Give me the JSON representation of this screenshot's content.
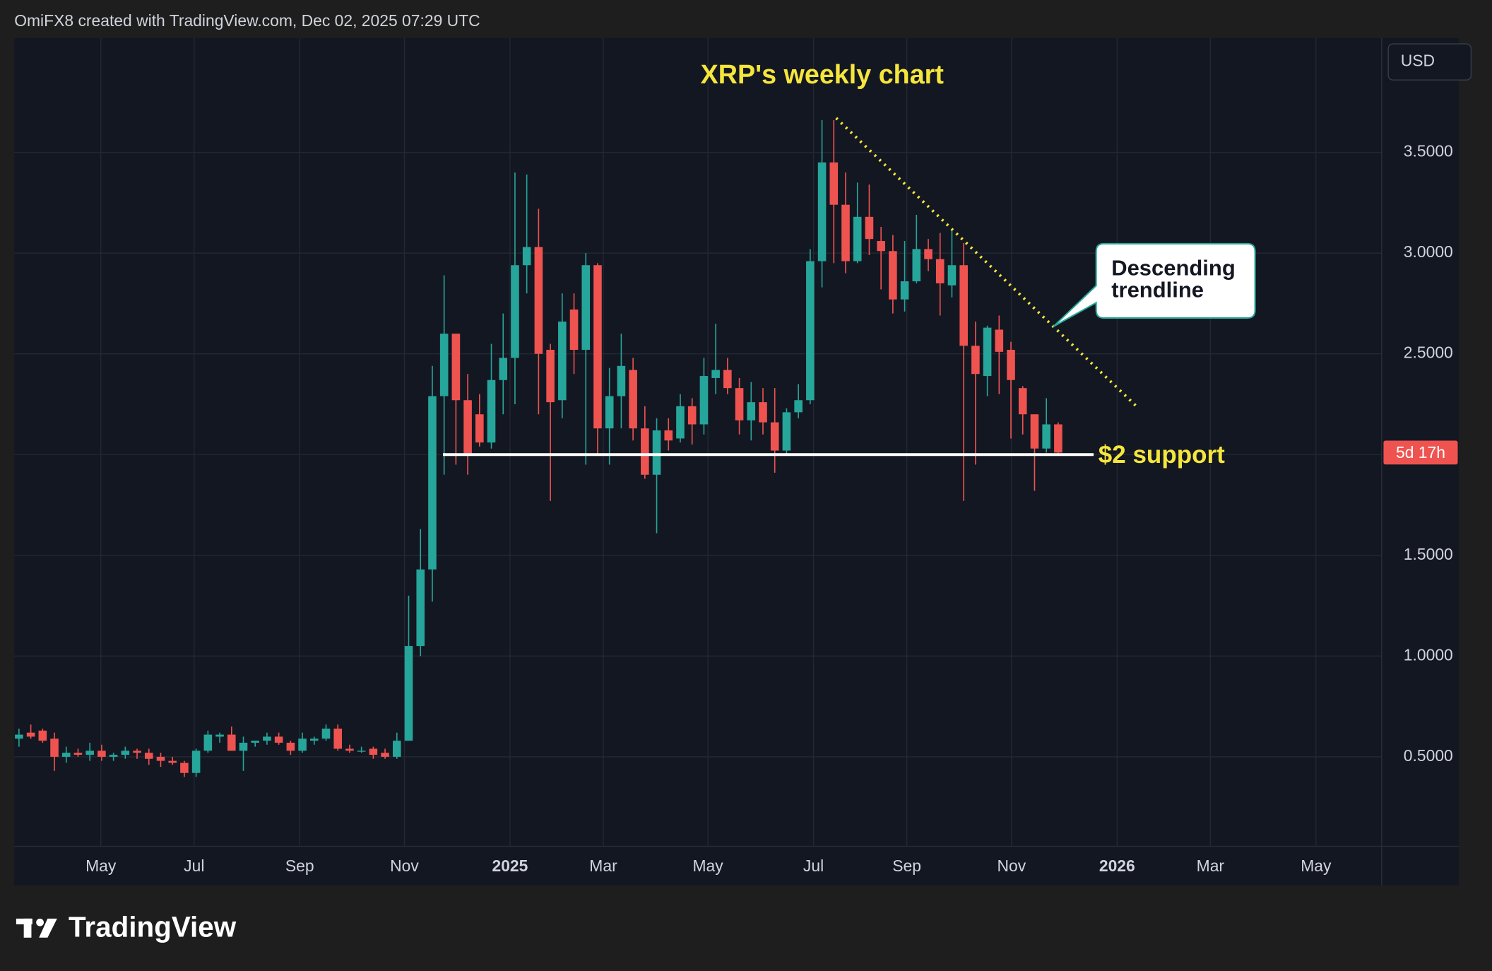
{
  "header": "OmiFX8 created with TradingView.com, Dec 02, 2025 07:29 UTC",
  "currency": "USD",
  "footer": "TradingView",
  "chart_data": {
    "type": "candlestick",
    "title": "XRP's weekly chart",
    "up_color": "#26a69a",
    "down_color": "#ef5350",
    "grid": true,
    "open": [
      0.59,
      0.62,
      0.63,
      0.59,
      0.5,
      0.52,
      0.51,
      0.53,
      0.5,
      0.51,
      0.53,
      0.52,
      0.5,
      0.48,
      0.47,
      0.42,
      0.53,
      0.6,
      0.61,
      0.53,
      0.57,
      0.58,
      0.6,
      0.57,
      0.53,
      0.58,
      0.59,
      0.64,
      0.54,
      0.53,
      0.54,
      0.52,
      0.5,
      0.58,
      1.05,
      1.43,
      2.29,
      2.6,
      2.27,
      2.2,
      2.06,
      2.37,
      2.48,
      2.94,
      3.03,
      2.52,
      2.27,
      2.72,
      2.52,
      2.94,
      2.13,
      2.29,
      2.42,
      2.13,
      1.9,
      2.12,
      2.08,
      2.24,
      2.15,
      2.38,
      2.42,
      2.33,
      2.17,
      2.26,
      2.16,
      2.02,
      2.21,
      2.27,
      2.96,
      3.45,
      3.24,
      2.96,
      3.18,
      3.06,
      3.01,
      2.77,
      2.86,
      3.02,
      2.97,
      2.84,
      2.94,
      2.54,
      2.39,
      2.62,
      2.52,
      2.33,
      2.2,
      2.03,
      2.15
    ],
    "high": [
      0.64,
      0.66,
      0.64,
      0.62,
      0.55,
      0.54,
      0.57,
      0.56,
      0.52,
      0.55,
      0.54,
      0.54,
      0.52,
      0.5,
      0.48,
      0.54,
      0.63,
      0.62,
      0.65,
      0.6,
      0.58,
      0.62,
      0.62,
      0.58,
      0.62,
      0.6,
      0.66,
      0.66,
      0.56,
      0.55,
      0.55,
      0.54,
      0.62,
      1.3,
      1.63,
      2.44,
      2.89,
      2.6,
      2.4,
      2.3,
      2.55,
      2.7,
      3.4,
      3.39,
      3.22,
      2.55,
      2.8,
      2.8,
      3.0,
      2.95,
      2.43,
      2.6,
      2.48,
      2.24,
      2.18,
      2.18,
      2.3,
      2.28,
      2.48,
      2.65,
      2.48,
      2.38,
      2.36,
      2.33,
      2.33,
      2.23,
      2.35,
      3.02,
      3.66,
      3.66,
      3.4,
      3.35,
      3.34,
      3.13,
      3.09,
      3.06,
      3.19,
      3.07,
      3.1,
      3.11,
      3.05,
      2.66,
      2.64,
      2.69,
      2.56,
      2.34,
      2.2,
      2.28,
      2.16
    ],
    "low": [
      0.55,
      0.59,
      0.57,
      0.43,
      0.47,
      0.5,
      0.48,
      0.48,
      0.48,
      0.49,
      0.49,
      0.46,
      0.45,
      0.46,
      0.4,
      0.4,
      0.52,
      0.57,
      0.53,
      0.43,
      0.55,
      0.56,
      0.56,
      0.51,
      0.52,
      0.56,
      0.58,
      0.53,
      0.52,
      0.52,
      0.49,
      0.49,
      0.49,
      0.58,
      1.0,
      1.27,
      1.9,
      1.95,
      1.9,
      2.04,
      2.03,
      2.2,
      2.25,
      2.8,
      2.2,
      1.77,
      2.18,
      2.4,
      1.95,
      2.0,
      1.95,
      2.13,
      2.07,
      1.88,
      1.61,
      2.02,
      2.06,
      2.05,
      2.1,
      2.3,
      2.3,
      2.1,
      2.07,
      2.1,
      1.91,
      2.0,
      2.18,
      2.25,
      2.83,
      2.95,
      2.9,
      2.95,
      2.99,
      2.82,
      2.7,
      2.71,
      2.85,
      2.91,
      2.69,
      2.78,
      1.77,
      1.95,
      2.29,
      2.3,
      2.08,
      2.1,
      1.82,
      2.01,
      2.0
    ],
    "close": [
      0.61,
      0.6,
      0.58,
      0.5,
      0.52,
      0.51,
      0.53,
      0.5,
      0.51,
      0.53,
      0.52,
      0.49,
      0.48,
      0.47,
      0.42,
      0.53,
      0.61,
      0.61,
      0.53,
      0.57,
      0.58,
      0.6,
      0.57,
      0.53,
      0.59,
      0.59,
      0.64,
      0.54,
      0.53,
      0.53,
      0.51,
      0.5,
      0.58,
      1.05,
      1.43,
      2.29,
      2.6,
      2.27,
      2.0,
      2.06,
      2.37,
      2.48,
      2.94,
      3.03,
      2.5,
      2.26,
      2.66,
      2.52,
      2.94,
      2.13,
      2.29,
      2.44,
      2.13,
      1.9,
      2.12,
      2.07,
      2.24,
      2.15,
      2.39,
      2.42,
      2.33,
      2.17,
      2.26,
      2.16,
      2.02,
      2.21,
      2.27,
      2.96,
      3.45,
      3.24,
      2.96,
      3.18,
      3.07,
      3.01,
      2.77,
      2.86,
      3.02,
      2.97,
      2.85,
      2.94,
      2.54,
      2.4,
      2.63,
      2.51,
      2.37,
      2.2,
      2.03,
      2.15,
      2.01
    ],
    "xlim": [
      -0.4,
      115.39
    ],
    "xticks": [
      {
        "value": 6.93,
        "label": "May"
      },
      {
        "value": 14.83,
        "label": "Jul"
      },
      {
        "value": 23.77,
        "label": "Sep"
      },
      {
        "value": 32.64,
        "label": "Nov"
      },
      {
        "value": 41.58,
        "label": "2025"
      },
      {
        "value": 49.48,
        "label": "Mar"
      },
      {
        "value": 58.34,
        "label": "May"
      },
      {
        "value": 67.28,
        "label": "Jul"
      },
      {
        "value": 75.18,
        "label": "Sep"
      },
      {
        "value": 84.05,
        "label": "Nov"
      },
      {
        "value": 92.99,
        "label": "2026"
      },
      {
        "value": 100.89,
        "label": "Mar"
      },
      {
        "value": 109.83,
        "label": "May"
      }
    ],
    "ylim": [
      0.056,
      4.067
    ],
    "yticks": [
      {
        "value": 0.5,
        "label": "0.5000"
      },
      {
        "value": 1.0,
        "label": "1.0000"
      },
      {
        "value": 1.5,
        "label": "1.5000"
      },
      {
        "value": 2.0,
        "label": "2.0000"
      },
      {
        "value": 2.5,
        "label": "2.5000"
      },
      {
        "value": 3.0,
        "label": "3.0000"
      },
      {
        "value": 3.5,
        "label": "3.5000"
      }
    ],
    "price_tag": "5d 17h",
    "support": {
      "label": "$2 support",
      "value": 2.0,
      "x": [
        35.9,
        91.0
      ],
      "color": "#ffffff"
    },
    "trendline": {
      "x": [
        69.2,
        94.8
      ],
      "y": [
        3.67,
        2.23
      ],
      "color": "#f5e63c"
    },
    "callout": [
      "Descending",
      "trendline"
    ],
    "annotation_color": "#f5e63c"
  }
}
